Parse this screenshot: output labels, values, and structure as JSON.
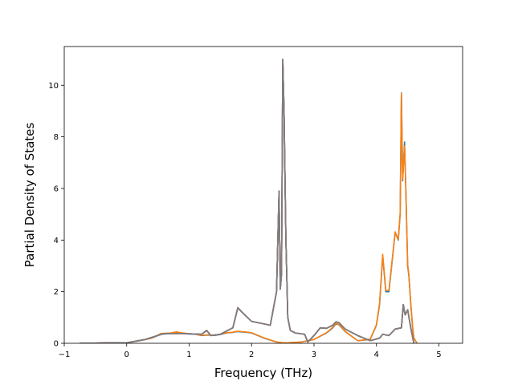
{
  "chart_data": {
    "type": "line",
    "title": "",
    "xlabel": "Frequency (THz)",
    "ylabel": "Partial Density of States",
    "xlim": [
      -1.0,
      5.38
    ],
    "ylim": [
      0,
      11.5
    ],
    "xticks": [
      -1,
      0,
      1,
      2,
      3,
      4,
      5
    ],
    "xtick_labels": [
      "−1",
      "0",
      "1",
      "2",
      "3",
      "4",
      "5"
    ],
    "yticks": [
      0,
      2,
      4,
      6,
      8,
      10
    ],
    "ytick_labels": [
      "0",
      "2",
      "4",
      "6",
      "8",
      "10"
    ],
    "grid": false,
    "legend": false,
    "series": [
      {
        "color": "#1f77b4",
        "x": [
          -0.75,
          0.0,
          0.2,
          0.4,
          0.55,
          0.7,
          0.8,
          0.9,
          1.0,
          1.1,
          1.2,
          1.3,
          1.4,
          1.5,
          1.6,
          1.7,
          1.75,
          1.8,
          1.9,
          2.0,
          2.2,
          2.4,
          2.5,
          2.6,
          2.8,
          3.0,
          3.2,
          3.3,
          3.35,
          3.4,
          3.5,
          3.7,
          3.9,
          4.0,
          4.05,
          4.08,
          4.1,
          4.15,
          4.2,
          4.3,
          4.35,
          4.38,
          4.4,
          4.42,
          4.45,
          4.47,
          4.5,
          4.52,
          4.55,
          4.58,
          4.6,
          4.65
        ],
        "y": [
          0.0,
          0.02,
          0.1,
          0.2,
          0.35,
          0.38,
          0.42,
          0.38,
          0.36,
          0.35,
          0.3,
          0.32,
          0.3,
          0.34,
          0.4,
          0.42,
          0.45,
          0.45,
          0.43,
          0.4,
          0.2,
          0.05,
          0.02,
          0.02,
          0.05,
          0.15,
          0.4,
          0.6,
          0.75,
          0.72,
          0.45,
          0.1,
          0.15,
          0.7,
          1.5,
          2.6,
          3.4,
          2.0,
          2.0,
          4.3,
          4.0,
          5.0,
          9.7,
          6.3,
          7.8,
          6.0,
          3.0,
          2.6,
          1.5,
          0.6,
          0.2,
          0.0
        ]
      },
      {
        "color": "#ff7f0e",
        "x": [
          -0.75,
          0.0,
          0.2,
          0.4,
          0.55,
          0.7,
          0.8,
          0.9,
          1.0,
          1.1,
          1.2,
          1.3,
          1.4,
          1.5,
          1.6,
          1.7,
          1.75,
          1.8,
          1.9,
          2.0,
          2.2,
          2.4,
          2.5,
          2.6,
          2.8,
          3.0,
          3.2,
          3.3,
          3.35,
          3.4,
          3.5,
          3.7,
          3.9,
          4.0,
          4.05,
          4.08,
          4.1,
          4.15,
          4.2,
          4.3,
          4.35,
          4.38,
          4.4,
          4.42,
          4.45,
          4.47,
          4.5,
          4.52,
          4.55,
          4.58,
          4.6,
          4.65
        ],
        "y": [
          0.0,
          0.02,
          0.1,
          0.2,
          0.38,
          0.4,
          0.44,
          0.4,
          0.37,
          0.36,
          0.31,
          0.33,
          0.31,
          0.35,
          0.41,
          0.43,
          0.46,
          0.46,
          0.44,
          0.41,
          0.21,
          0.05,
          0.02,
          0.02,
          0.05,
          0.15,
          0.41,
          0.62,
          0.77,
          0.73,
          0.46,
          0.1,
          0.16,
          0.72,
          1.55,
          2.65,
          3.45,
          2.05,
          2.05,
          4.32,
          4.02,
          5.05,
          9.68,
          6.35,
          7.65,
          6.1,
          3.05,
          2.65,
          1.55,
          0.62,
          0.2,
          0.0
        ]
      },
      {
        "color": "#2ca02c",
        "x": [
          -0.75,
          0.0,
          0.3,
          0.6,
          0.9,
          1.2,
          1.28,
          1.35,
          1.5,
          1.7,
          1.78,
          1.85,
          2.0,
          2.2,
          2.3,
          2.4,
          2.44,
          2.46,
          2.48,
          2.5,
          2.52,
          2.55,
          2.58,
          2.62,
          2.7,
          2.85,
          2.9,
          3.0,
          3.1,
          3.2,
          3.3,
          3.35,
          3.4,
          3.5,
          3.7,
          3.9,
          4.05,
          4.1,
          4.2,
          4.3,
          4.4,
          4.43,
          4.46,
          4.5,
          4.55,
          4.6
        ],
        "y": [
          0.0,
          0.02,
          0.15,
          0.38,
          0.38,
          0.35,
          0.5,
          0.3,
          0.35,
          0.6,
          1.38,
          1.2,
          0.85,
          0.75,
          0.7,
          2.0,
          5.9,
          2.1,
          2.7,
          11.0,
          9.0,
          4.0,
          1.0,
          0.5,
          0.4,
          0.35,
          0.05,
          0.3,
          0.6,
          0.58,
          0.7,
          0.83,
          0.8,
          0.55,
          0.3,
          0.1,
          0.2,
          0.35,
          0.3,
          0.55,
          0.6,
          1.5,
          1.1,
          1.3,
          0.6,
          0.0
        ]
      },
      {
        "color": "#d62728",
        "x": [
          -0.75,
          0.0,
          0.3,
          0.6,
          0.9,
          1.2,
          1.28,
          1.35,
          1.5,
          1.7,
          1.78,
          1.85,
          2.0,
          2.2,
          2.3,
          2.4,
          2.44,
          2.46,
          2.48,
          2.5,
          2.52,
          2.55,
          2.58,
          2.62,
          2.7,
          2.85,
          2.9,
          3.0,
          3.1,
          3.2,
          3.3,
          3.35,
          3.4,
          3.5,
          3.7,
          3.9,
          4.05,
          4.1,
          4.2,
          4.3,
          4.4,
          4.43,
          4.46,
          4.5,
          4.55,
          4.6
        ],
        "y": [
          0.0,
          0.02,
          0.15,
          0.38,
          0.38,
          0.35,
          0.49,
          0.3,
          0.35,
          0.6,
          1.37,
          1.2,
          0.85,
          0.75,
          0.7,
          2.0,
          5.88,
          2.1,
          2.7,
          10.98,
          9.0,
          4.0,
          1.0,
          0.5,
          0.4,
          0.35,
          0.05,
          0.3,
          0.6,
          0.58,
          0.7,
          0.83,
          0.8,
          0.55,
          0.3,
          0.1,
          0.2,
          0.35,
          0.3,
          0.55,
          0.6,
          1.5,
          1.1,
          1.3,
          0.6,
          0.0
        ]
      },
      {
        "color": "#9467bd",
        "x": [
          -0.75,
          0.0,
          0.3,
          0.6,
          0.9,
          1.2,
          1.28,
          1.35,
          1.5,
          1.7,
          1.78,
          1.85,
          2.0,
          2.2,
          2.3,
          2.4,
          2.44,
          2.46,
          2.48,
          2.5,
          2.52,
          2.55,
          2.58,
          2.62,
          2.7,
          2.85,
          2.9,
          3.0,
          3.1,
          3.2,
          3.3,
          3.35,
          3.4,
          3.5,
          3.7,
          3.9,
          4.05,
          4.1,
          4.2,
          4.3,
          4.4,
          4.43,
          4.46,
          4.5,
          4.55,
          4.6
        ],
        "y": [
          0.0,
          0.02,
          0.15,
          0.38,
          0.38,
          0.35,
          0.5,
          0.3,
          0.35,
          0.6,
          1.38,
          1.2,
          0.85,
          0.75,
          0.7,
          2.0,
          5.9,
          2.1,
          2.7,
          11.0,
          9.0,
          4.0,
          1.0,
          0.5,
          0.4,
          0.35,
          0.05,
          0.3,
          0.6,
          0.58,
          0.7,
          0.83,
          0.8,
          0.55,
          0.3,
          0.1,
          0.2,
          0.35,
          0.3,
          0.55,
          0.6,
          1.5,
          1.1,
          1.3,
          0.6,
          0.0
        ]
      },
      {
        "color": "#8c564b",
        "x": [
          -0.75,
          0.0,
          0.3,
          0.6,
          0.9,
          1.2,
          1.28,
          1.35,
          1.5,
          1.7,
          1.78,
          1.85,
          2.0,
          2.2,
          2.3,
          2.4,
          2.44,
          2.46,
          2.48,
          2.5,
          2.52,
          2.55,
          2.58,
          2.62,
          2.7,
          2.85,
          2.9,
          3.0,
          3.1,
          3.2,
          3.3,
          3.35,
          3.4,
          3.5,
          3.7,
          3.9,
          4.05,
          4.1,
          4.2,
          4.3,
          4.4,
          4.43,
          4.46,
          4.5,
          4.55,
          4.6
        ],
        "y": [
          0.0,
          0.02,
          0.15,
          0.38,
          0.38,
          0.35,
          0.5,
          0.3,
          0.35,
          0.6,
          1.38,
          1.2,
          0.85,
          0.75,
          0.7,
          2.0,
          5.9,
          2.1,
          2.7,
          11.0,
          9.0,
          4.0,
          1.0,
          0.5,
          0.4,
          0.35,
          0.05,
          0.3,
          0.6,
          0.58,
          0.7,
          0.83,
          0.8,
          0.55,
          0.3,
          0.1,
          0.2,
          0.35,
          0.3,
          0.55,
          0.6,
          1.5,
          1.1,
          1.3,
          0.6,
          0.0
        ]
      },
      {
        "color": "#7f7f7f",
        "x": [
          -0.75,
          0.0,
          0.3,
          0.6,
          0.9,
          1.2,
          1.28,
          1.35,
          1.5,
          1.7,
          1.78,
          1.85,
          2.0,
          2.2,
          2.3,
          2.4,
          2.44,
          2.46,
          2.48,
          2.5,
          2.52,
          2.55,
          2.58,
          2.62,
          2.7,
          2.85,
          2.9,
          3.0,
          3.1,
          3.2,
          3.3,
          3.35,
          3.4,
          3.5,
          3.7,
          3.9,
          4.05,
          4.1,
          4.2,
          4.3,
          4.4,
          4.43,
          4.46,
          4.5,
          4.55,
          4.6
        ],
        "y": [
          0.0,
          0.02,
          0.15,
          0.38,
          0.38,
          0.35,
          0.5,
          0.3,
          0.35,
          0.6,
          1.38,
          1.2,
          0.85,
          0.75,
          0.7,
          2.0,
          5.9,
          2.1,
          2.7,
          11.0,
          9.0,
          4.0,
          1.0,
          0.5,
          0.4,
          0.35,
          0.05,
          0.3,
          0.6,
          0.58,
          0.7,
          0.83,
          0.8,
          0.55,
          0.3,
          0.1,
          0.2,
          0.35,
          0.3,
          0.55,
          0.6,
          1.5,
          1.1,
          1.3,
          0.6,
          0.0
        ]
      }
    ]
  }
}
